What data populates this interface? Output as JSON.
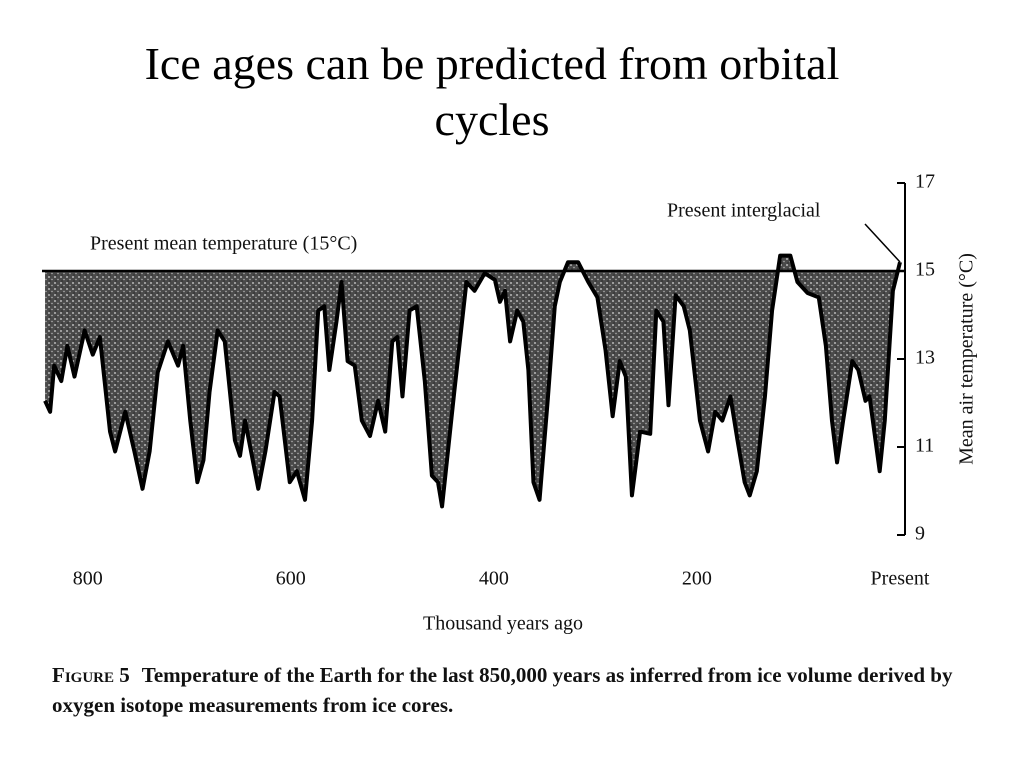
{
  "chart_data": {
    "type": "line",
    "title": "Ice ages can be predicted from orbital cycles",
    "x_label": "Thousand years ago",
    "y_label": "Mean air temperature (°C)",
    "annotations": [
      "Present mean temperature (15°C)",
      "Present interglacial"
    ],
    "baseline": 15,
    "color": "#000000",
    "xlim": [
      845,
      0
    ],
    "xticks": [
      800,
      600,
      400,
      200,
      {
        "value": 0,
        "label": "Present"
      }
    ],
    "ylim": [
      9,
      17
    ],
    "yticks": [
      9,
      11,
      13,
      15,
      17
    ],
    "grid": false,
    "x": [
      842,
      837,
      833,
      826,
      820,
      813,
      803,
      795,
      788,
      778,
      773,
      763,
      754,
      746,
      739,
      731,
      721,
      711,
      706,
      699,
      692,
      686,
      680,
      672,
      665,
      655,
      650,
      645,
      632,
      625,
      616,
      611,
      601,
      594,
      586,
      579,
      573,
      567,
      562,
      555,
      550,
      544,
      537,
      530,
      522,
      514,
      507,
      500,
      495,
      490,
      483,
      476,
      468,
      461,
      455,
      451,
      439,
      427,
      419,
      409,
      399,
      394,
      389,
      384,
      377,
      371,
      366,
      361,
      355,
      347,
      340,
      335,
      327,
      317,
      307,
      298,
      290,
      283,
      276,
      270,
      264,
      256,
      246,
      240,
      233,
      228,
      221,
      213,
      207,
      197,
      189,
      182,
      175,
      167,
      160,
      153,
      148,
      141,
      133,
      126,
      118,
      108,
      101,
      91,
      80,
      73,
      67,
      62,
      56,
      47,
      41,
      34,
      30,
      20,
      15,
      7,
      0
    ],
    "values": [
      12.05,
      11.8,
      12.85,
      12.5,
      13.3,
      12.6,
      13.65,
      13.1,
      13.5,
      11.35,
      10.9,
      11.8,
      10.9,
      10.05,
      10.9,
      12.7,
      13.4,
      12.85,
      13.3,
      11.6,
      10.2,
      10.7,
      12.25,
      13.65,
      13.4,
      11.15,
      10.8,
      11.6,
      10.05,
      10.9,
      12.25,
      12.15,
      10.2,
      10.45,
      9.8,
      11.6,
      14.1,
      14.2,
      12.75,
      13.85,
      14.75,
      12.95,
      12.85,
      11.6,
      11.25,
      12.05,
      11.35,
      13.4,
      13.5,
      12.15,
      14.1,
      14.2,
      12.5,
      10.35,
      10.2,
      9.65,
      12.25,
      14.75,
      14.55,
      14.95,
      14.8,
      14.3,
      14.55,
      13.4,
      14.1,
      13.85,
      12.75,
      10.2,
      9.8,
      12.05,
      14.2,
      14.75,
      15.2,
      15.2,
      14.75,
      14.4,
      13.2,
      11.7,
      12.95,
      12.6,
      9.9,
      11.35,
      11.3,
      14.1,
      13.85,
      11.95,
      14.45,
      14.2,
      13.65,
      11.6,
      10.9,
      11.8,
      11.6,
      12.15,
      11.15,
      10.2,
      9.9,
      10.45,
      12.15,
      14.1,
      15.35,
      15.35,
      14.75,
      14.5,
      14.4,
      13.3,
      11.6,
      10.65,
      11.6,
      12.95,
      12.75,
      12.05,
      12.15,
      10.45,
      11.6,
      14.55,
      15.2
    ]
  },
  "caption_label": "Figure 5",
  "caption": "Temperature of the Earth for the last 850,000 years as inferred from ice volume derived by oxygen isotope measurements from ice cores."
}
